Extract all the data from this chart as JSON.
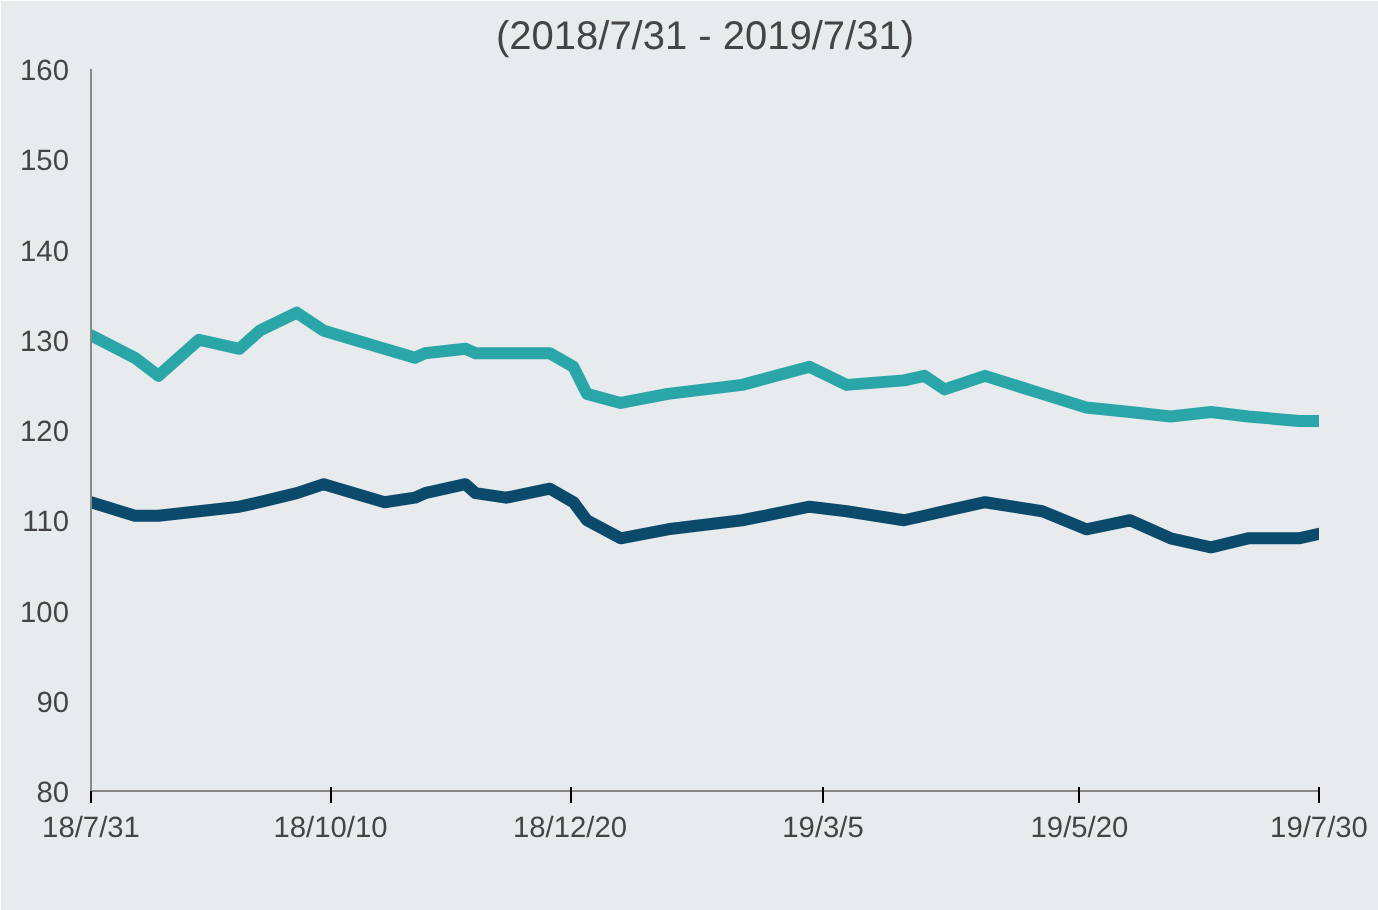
{
  "chart_data": {
    "type": "line",
    "title": "(2018/7/31 - 2019/7/31)",
    "x": [
      "2018-07-31",
      "2018-08-13",
      "2018-08-20",
      "2018-09-01",
      "2018-09-13",
      "2018-09-19",
      "2018-09-30",
      "2018-10-08",
      "2018-10-17",
      "2018-10-26",
      "2018-11-04",
      "2018-11-07",
      "2018-11-19",
      "2018-11-22",
      "2018-12-01",
      "2018-12-14",
      "2018-12-21",
      "2018-12-25",
      "2019-01-04",
      "2019-01-18",
      "2019-02-09",
      "2019-03-01",
      "2019-03-12",
      "2019-03-29",
      "2019-04-04",
      "2019-04-10",
      "2019-04-22",
      "2019-05-09",
      "2019-05-22",
      "2019-06-04",
      "2019-06-16",
      "2019-06-28",
      "2019-07-09",
      "2019-07-24",
      "2019-07-30"
    ],
    "series": [
      {
        "color": "#0b4a6b",
        "values": [
          112,
          110.5,
          110.5,
          111,
          111.5,
          112,
          113,
          114,
          113,
          112,
          112.5,
          113,
          114,
          113,
          112.5,
          113.5,
          112,
          110,
          108,
          109,
          110,
          111.5,
          111,
          110,
          110.5,
          111,
          112,
          111,
          109,
          110,
          108,
          107,
          108,
          108,
          108.5
        ]
      },
      {
        "color": "#2aa6a8",
        "values": [
          130.5,
          128,
          126,
          130,
          129,
          131,
          133,
          131,
          130,
          129,
          128,
          128.5,
          129,
          128.5,
          128.5,
          128.5,
          127,
          124,
          123,
          124,
          125,
          127,
          125,
          125.5,
          126,
          124.5,
          126,
          124,
          122.5,
          122,
          121.5,
          122,
          121.5,
          121,
          121
        ]
      }
    ],
    "xlim": [
      "2018-07-31",
      "2019-07-30"
    ],
    "xticks": [
      {
        "value": "2018-07-31",
        "label": "18/7/31"
      },
      {
        "value": "2018-10-10",
        "label": "18/10/10"
      },
      {
        "value": "2018-12-20",
        "label": "18/12/20"
      },
      {
        "value": "2019-03-05",
        "label": "19/3/5"
      },
      {
        "value": "2019-05-20",
        "label": "19/5/20"
      },
      {
        "value": "2019-07-30",
        "label": "19/7/30"
      }
    ],
    "ylim": [
      80,
      160
    ],
    "yticks": [
      80,
      90,
      100,
      110,
      120,
      130,
      140,
      150,
      160
    ],
    "grid": false
  }
}
